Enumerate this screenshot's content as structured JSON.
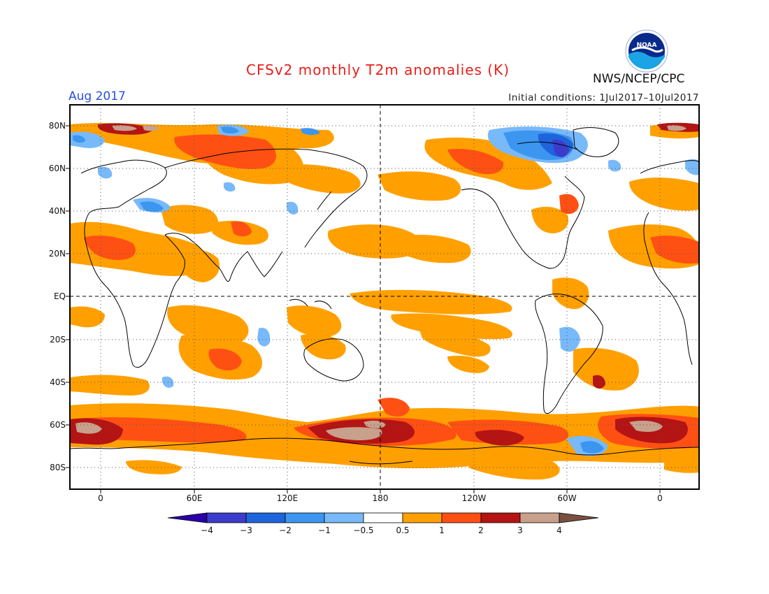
{
  "header": {
    "title": "CFSv2 monthly T2m anomalies (K)",
    "period": "Aug 2017",
    "initial_conditions": "Initial conditions: 1Jul2017–10Jul2017",
    "agency": "NWS/NCEP/CPC",
    "logo_text": "NOAA"
  },
  "map": {
    "lat_labels": [
      "80N",
      "60N",
      "40N",
      "20N",
      "EQ",
      "20S",
      "40S",
      "60S",
      "80S"
    ],
    "lon_labels": [
      "0",
      "60E",
      "120E",
      "180",
      "120W",
      "60W",
      "0"
    ],
    "colors": {
      "frame": "#000000",
      "grid": "#555555",
      "coast": "#000000"
    }
  },
  "colorbar": {
    "tick_labels": [
      "−4",
      "−3",
      "−2",
      "−1",
      "−0.5",
      "0.5",
      "1",
      "2",
      "3",
      "4"
    ],
    "colors": [
      "#2a00a8",
      "#3c3ccc",
      "#1e64dc",
      "#3c96f0",
      "#78b9fa",
      "#ffffff",
      "#ffa000",
      "#ff5014",
      "#b41414",
      "#c8a08c",
      "#7a5040"
    ]
  }
}
